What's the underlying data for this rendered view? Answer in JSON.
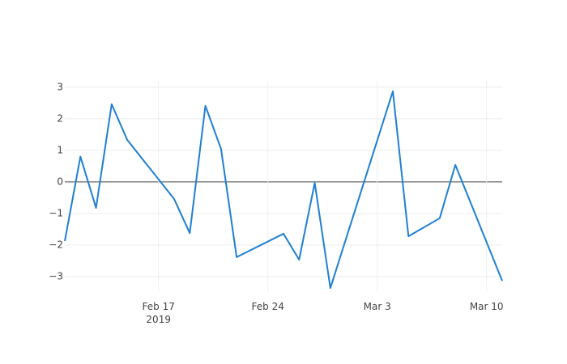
{
  "chart_data": {
    "type": "line",
    "x": [
      "2019-02-11",
      "2019-02-12",
      "2019-02-13",
      "2019-02-14",
      "2019-02-15",
      "2019-02-18",
      "2019-02-19",
      "2019-02-20",
      "2019-02-21",
      "2019-02-22",
      "2019-02-25",
      "2019-02-26",
      "2019-02-27",
      "2019-02-28",
      "2019-03-04",
      "2019-03-05",
      "2019-03-07",
      "2019-03-08",
      "2019-03-11"
    ],
    "series": [
      {
        "color": "#1f7fd6",
        "values": [
          -1.87,
          0.8,
          -0.82,
          2.46,
          1.33,
          -0.54,
          -1.62,
          2.41,
          1.05,
          -2.38,
          -1.64,
          -2.46,
          -0.03,
          -3.36,
          2.87,
          -1.72,
          -1.15,
          0.54,
          -3.13
        ]
      }
    ],
    "xlim": [
      "2019-02-11",
      "2019-03-11"
    ],
    "xticks": [
      {
        "value": "2019-02-17",
        "label": "Feb 17\n2019"
      },
      {
        "value": "2019-02-24",
        "label": "Feb 24"
      },
      {
        "value": "2019-03-03",
        "label": "Mar 3"
      },
      {
        "value": "2019-03-10",
        "label": "Mar 10"
      }
    ],
    "ylim": [
      -3.46,
      3.2
    ],
    "yticks": [
      {
        "value": -3,
        "label": "−3"
      },
      {
        "value": -2,
        "label": "−2"
      },
      {
        "value": -1,
        "label": "−1"
      },
      0,
      1,
      2,
      3
    ],
    "grid": true,
    "zeroline": true
  }
}
